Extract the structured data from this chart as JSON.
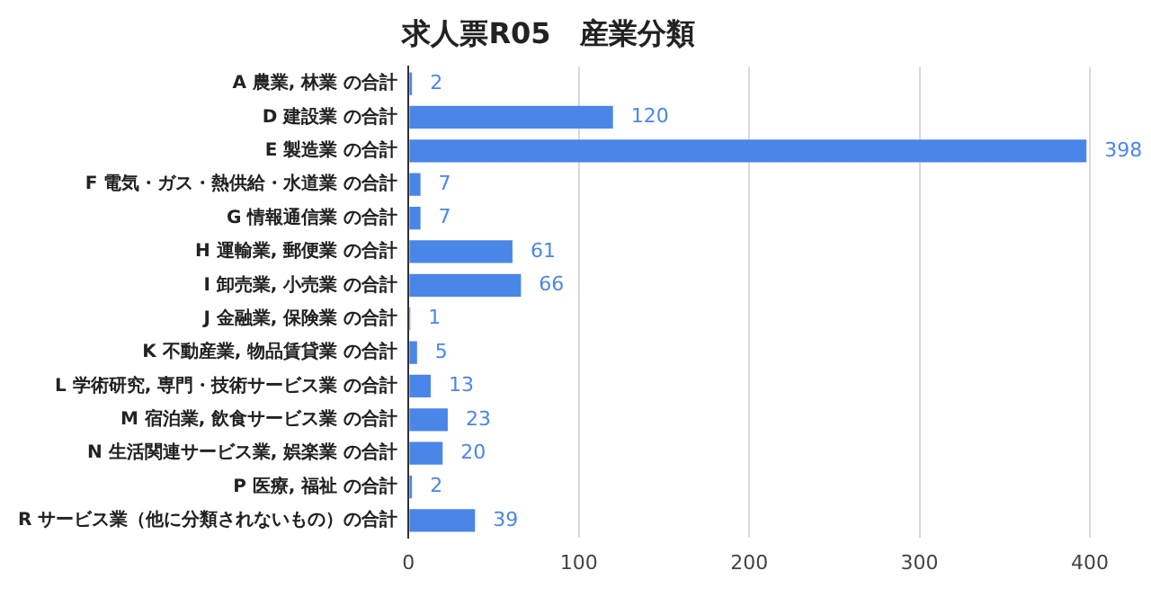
{
  "chart_data": {
    "type": "bar",
    "orientation": "horizontal",
    "title": "求人票R05　産業分類",
    "categories": [
      "A 農業, 林業 の合計",
      "D 建設業 の合計",
      "E 製造業 の合計",
      "F 電気・ガス・熱供給・水道業 の合計",
      "G 情報通信業 の合計",
      "H 運輸業, 郵便業 の合計",
      "I 卸売業, 小売業 の合計",
      "J 金融業, 保険業 の合計",
      "K 不動産業, 物品賃貸業 の合計",
      "L 学術研究, 専門・技術サービス業 の合計",
      "M 宿泊業, 飲食サービス業 の合計",
      "N 生活関連サービス業, 娯楽業 の合計",
      "P 医療, 福祉 の合計",
      "R サービス業（他に分類されないもの）の合計"
    ],
    "values": [
      2,
      120,
      398,
      7,
      7,
      61,
      66,
      1,
      5,
      13,
      23,
      20,
      2,
      39
    ],
    "color": "#4a86e8",
    "data_labels": true,
    "xlim": [
      0,
      400
    ],
    "xticks": [
      0,
      100,
      200,
      300,
      400
    ],
    "grid": "x",
    "legend": false
  }
}
